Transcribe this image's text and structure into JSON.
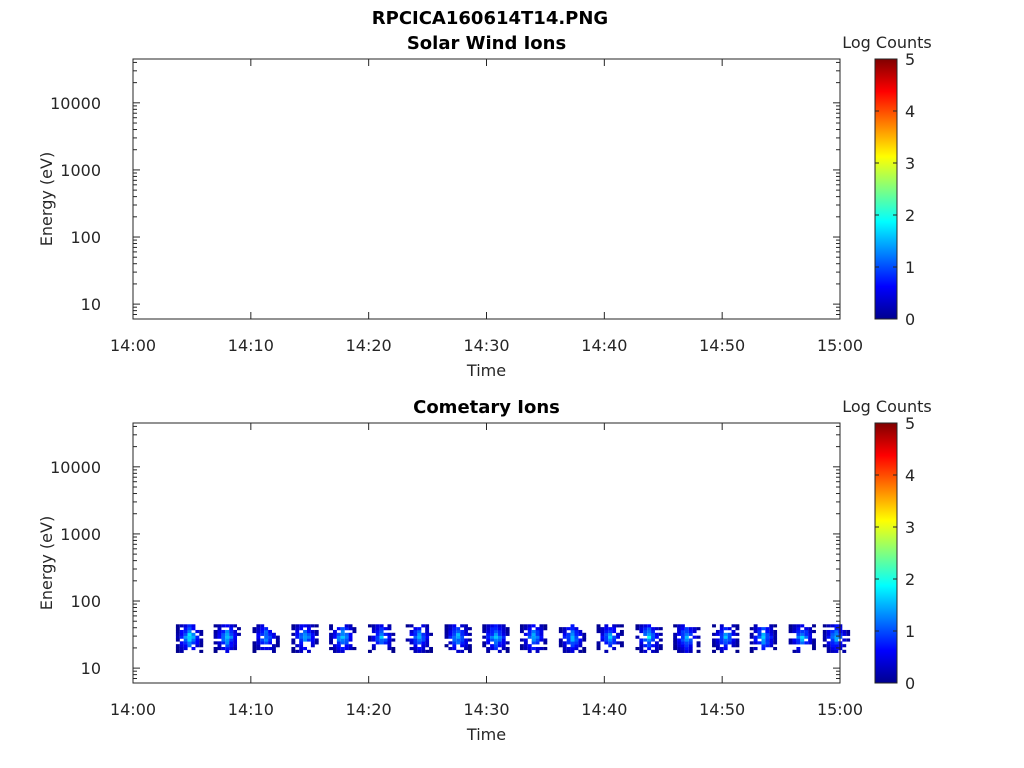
{
  "figure_title": "RPCICA160614T14.PNG",
  "colors": {
    "background": "#ffffff",
    "axis": "#262626",
    "text": "#000000"
  },
  "chart_data": [
    {
      "type": "heatmap",
      "title": "Solar Wind Ions",
      "xlabel": "Time",
      "ylabel": "Energy (eV)",
      "y_scale": "log",
      "ylim": [
        6,
        45000
      ],
      "xlim": [
        "14:00",
        "15:00"
      ],
      "x_ticks": [
        "14:00",
        "14:10",
        "14:20",
        "14:30",
        "14:40",
        "14:50",
        "15:00"
      ],
      "y_ticks": [
        "10",
        "100",
        "1000",
        "10000"
      ],
      "y_tick_values": [
        10,
        100,
        1000,
        10000
      ],
      "colorbar": {
        "label": "Log Counts",
        "ticks": [
          "0",
          "1",
          "2",
          "3",
          "4",
          "5"
        ],
        "range": [
          0,
          5
        ],
        "colormap": "jet"
      },
      "grid": false,
      "bursts": []
    },
    {
      "type": "heatmap",
      "title": "Cometary Ions",
      "xlabel": "Time",
      "ylabel": "Energy (eV)",
      "y_scale": "log",
      "ylim": [
        6,
        45000
      ],
      "xlim": [
        "14:00",
        "15:00"
      ],
      "x_ticks": [
        "14:00",
        "14:10",
        "14:20",
        "14:30",
        "14:40",
        "14:50",
        "15:00"
      ],
      "y_ticks": [
        "10",
        "100",
        "1000",
        "10000"
      ],
      "y_tick_values": [
        10,
        100,
        1000,
        10000
      ],
      "colorbar": {
        "label": "Log Counts",
        "ticks": [
          "0",
          "1",
          "2",
          "3",
          "4",
          "5"
        ],
        "range": [
          0,
          5
        ],
        "colormap": "jet"
      },
      "grid": false,
      "burst_energy_range_eV": [
        17,
        45
      ],
      "peak_energy_eV": 30,
      "bursts": [
        {
          "time_min": 4.8,
          "peak_log_counts": 1.9
        },
        {
          "time_min": 8.0,
          "peak_log_counts": 1.7
        },
        {
          "time_min": 11.3,
          "peak_log_counts": 1.5
        },
        {
          "time_min": 14.6,
          "peak_log_counts": 1.7
        },
        {
          "time_min": 17.8,
          "peak_log_counts": 1.8
        },
        {
          "time_min": 21.1,
          "peak_log_counts": 1.5
        },
        {
          "time_min": 24.3,
          "peak_log_counts": 1.5
        },
        {
          "time_min": 27.6,
          "peak_log_counts": 1.7
        },
        {
          "time_min": 30.8,
          "peak_log_counts": 1.8
        },
        {
          "time_min": 34.0,
          "peak_log_counts": 1.7
        },
        {
          "time_min": 37.3,
          "peak_log_counts": 1.6
        },
        {
          "time_min": 40.5,
          "peak_log_counts": 1.5
        },
        {
          "time_min": 43.8,
          "peak_log_counts": 1.8
        },
        {
          "time_min": 47.0,
          "peak_log_counts": 1.7
        },
        {
          "time_min": 50.3,
          "peak_log_counts": 1.6
        },
        {
          "time_min": 53.5,
          "peak_log_counts": 1.7
        },
        {
          "time_min": 56.8,
          "peak_log_counts": 1.6
        },
        {
          "time_min": 59.7,
          "peak_log_counts": 1.6
        }
      ]
    }
  ]
}
